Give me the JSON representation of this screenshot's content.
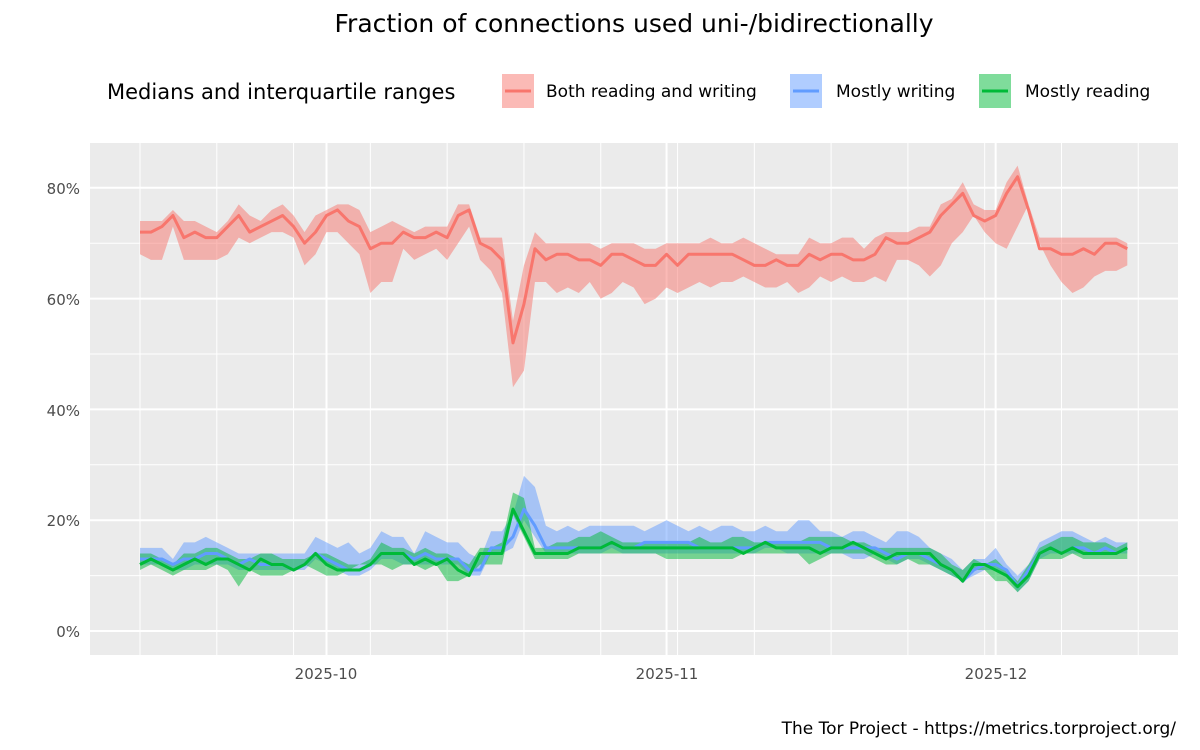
{
  "chart_data": {
    "type": "area",
    "title": "Fraction of connections used uni-/bidirectionally",
    "legend_title": "Medians and interquartile ranges",
    "legend_position": "top",
    "caption": "The Tor Project - https://metrics.torproject.org/",
    "x_start": "2025-09-14",
    "x_end": "2025-12-14",
    "x_step_days": 1,
    "x_ticks": [
      {
        "label": "2025-10",
        "day": 17
      },
      {
        "label": "2025-11",
        "day": 48
      },
      {
        "label": "2025-12",
        "day": 78
      }
    ],
    "y_ticks": [
      {
        "label": "0%",
        "v": 0
      },
      {
        "label": "20%",
        "v": 20
      },
      {
        "label": "40%",
        "v": 40
      },
      {
        "label": "60%",
        "v": 60
      },
      {
        "label": "80%",
        "v": 80
      }
    ],
    "ylim": [
      -4,
      88
    ],
    "xlabel": "",
    "ylabel": "",
    "grid": true,
    "series": [
      {
        "name": "Both reading and writing",
        "color": "#f8766d",
        "median": [
          72,
          72,
          73,
          75,
          71,
          72,
          71,
          71,
          73,
          75,
          72,
          73,
          74,
          75,
          73,
          70,
          72,
          75,
          76,
          74,
          73,
          69,
          70,
          70,
          72,
          71,
          71,
          72,
          71,
          75,
          76,
          70,
          69,
          67,
          52,
          59,
          69,
          67,
          68,
          68,
          67,
          67,
          66,
          68,
          68,
          67,
          66,
          66,
          68,
          66,
          68,
          68,
          68,
          68,
          68,
          67,
          66,
          66,
          67,
          66,
          66,
          68,
          67,
          68,
          68,
          67,
          67,
          68,
          71,
          70,
          70,
          71,
          72,
          75,
          77,
          79,
          75,
          74,
          75,
          79,
          82,
          76,
          69,
          69,
          68,
          68,
          69,
          68,
          70,
          70,
          69
        ],
        "q1": [
          68,
          67,
          67,
          73,
          67,
          67,
          67,
          67,
          68,
          71,
          70,
          71,
          72,
          72,
          71,
          66,
          68,
          72,
          72,
          70,
          68,
          61,
          63,
          63,
          69,
          67,
          68,
          69,
          67,
          70,
          73,
          67,
          65,
          61,
          44,
          47,
          63,
          63,
          61,
          62,
          61,
          63,
          60,
          61,
          63,
          62,
          59,
          60,
          62,
          61,
          62,
          63,
          62,
          63,
          63,
          64,
          63,
          62,
          62,
          63,
          61,
          62,
          64,
          63,
          64,
          63,
          63,
          64,
          63,
          67,
          67,
          66,
          64,
          66,
          70,
          72,
          75,
          72,
          70,
          69,
          73,
          77,
          70,
          66,
          63,
          61,
          62,
          64,
          65,
          65,
          66
        ],
        "q3": [
          74,
          74,
          74,
          76,
          74,
          74,
          73,
          72,
          74,
          77,
          75,
          74,
          76,
          77,
          75,
          72,
          75,
          76,
          77,
          77,
          76,
          72,
          73,
          74,
          73,
          72,
          73,
          73,
          73,
          77,
          77,
          71,
          71,
          71,
          56,
          66,
          72,
          70,
          70,
          70,
          70,
          70,
          69,
          70,
          70,
          70,
          69,
          69,
          70,
          70,
          70,
          70,
          71,
          70,
          70,
          71,
          70,
          69,
          68,
          68,
          68,
          71,
          70,
          70,
          71,
          71,
          69,
          71,
          72,
          72,
          72,
          73,
          73,
          77,
          78,
          81,
          77,
          76,
          76,
          81,
          84,
          77,
          71,
          71,
          71,
          71,
          71,
          71,
          71,
          71,
          70
        ]
      },
      {
        "name": "Mostly writing",
        "color": "#619cff",
        "median": [
          13,
          13,
          13,
          12,
          13,
          13,
          14,
          14,
          13,
          12,
          13,
          12,
          12,
          12,
          11,
          12,
          14,
          13,
          12,
          11,
          11,
          12,
          14,
          14,
          14,
          13,
          14,
          13,
          13,
          13,
          11,
          11,
          15,
          15,
          17,
          22,
          19,
          15,
          15,
          15,
          15,
          15,
          15,
          16,
          15,
          15,
          16,
          16,
          16,
          16,
          16,
          15,
          15,
          15,
          15,
          15,
          15,
          16,
          16,
          16,
          16,
          16,
          16,
          15,
          15,
          15,
          15,
          15,
          14,
          13,
          14,
          14,
          13,
          12,
          11,
          9,
          11,
          12,
          12,
          11,
          8,
          11,
          14,
          15,
          14,
          15,
          15,
          14,
          15,
          14,
          15
        ],
        "q1": [
          12,
          12,
          12,
          11,
          11,
          12,
          12,
          12,
          12,
          11,
          11,
          11,
          11,
          11,
          11,
          11,
          13,
          12,
          11,
          10,
          10,
          11,
          13,
          13,
          12,
          12,
          12,
          12,
          12,
          12,
          10,
          10,
          14,
          14,
          15,
          20,
          17,
          14,
          14,
          14,
          14,
          14,
          14,
          15,
          14,
          14,
          14,
          14,
          14,
          14,
          14,
          14,
          14,
          14,
          14,
          14,
          14,
          15,
          15,
          14,
          14,
          14,
          14,
          14,
          14,
          13,
          13,
          14,
          13,
          12,
          13,
          13,
          12,
          11,
          10,
          9,
          10,
          11,
          11,
          10,
          7,
          9,
          13,
          14,
          14,
          14,
          14,
          14,
          14,
          14,
          14
        ],
        "q3": [
          15,
          15,
          15,
          13,
          16,
          16,
          17,
          16,
          15,
          14,
          14,
          14,
          14,
          14,
          14,
          14,
          17,
          16,
          15,
          16,
          14,
          15,
          18,
          17,
          17,
          14,
          18,
          17,
          16,
          16,
          14,
          13,
          18,
          18,
          21,
          28,
          26,
          19,
          18,
          19,
          18,
          19,
          19,
          19,
          19,
          19,
          18,
          19,
          20,
          19,
          18,
          19,
          18,
          19,
          19,
          18,
          18,
          19,
          18,
          18,
          20,
          20,
          18,
          18,
          17,
          18,
          18,
          17,
          16,
          18,
          18,
          17,
          15,
          14,
          13,
          11,
          13,
          13,
          15,
          12,
          10,
          12,
          16,
          17,
          18,
          18,
          17,
          16,
          17,
          16,
          16
        ]
      },
      {
        "name": "Mostly reading",
        "color": "#00ba38",
        "median": [
          12,
          13,
          12,
          11,
          12,
          13,
          12,
          13,
          13,
          12,
          11,
          13,
          12,
          12,
          11,
          12,
          14,
          12,
          11,
          11,
          11,
          12,
          14,
          14,
          14,
          12,
          13,
          12,
          13,
          11,
          10,
          14,
          14,
          14,
          22,
          18,
          14,
          14,
          14,
          14,
          15,
          15,
          15,
          16,
          15,
          15,
          15,
          15,
          15,
          15,
          15,
          15,
          15,
          15,
          15,
          14,
          15,
          16,
          15,
          15,
          15,
          15,
          14,
          15,
          15,
          16,
          15,
          14,
          13,
          14,
          14,
          14,
          14,
          12,
          11,
          9,
          12,
          12,
          11,
          10,
          8,
          10,
          14,
          15,
          14,
          15,
          14,
          14,
          14,
          14,
          15
        ],
        "q1": [
          11,
          12,
          11,
          10,
          11,
          11,
          11,
          12,
          11,
          8,
          11,
          10,
          10,
          10,
          11,
          12,
          11,
          10,
          10,
          11,
          12,
          12,
          12,
          11,
          12,
          12,
          11,
          12,
          9,
          9,
          10,
          12,
          12,
          12,
          21,
          17,
          13,
          13,
          13,
          13,
          14,
          14,
          14,
          14,
          14,
          14,
          14,
          14,
          13,
          13,
          13,
          13,
          13,
          13,
          13,
          14,
          14,
          14,
          14,
          14,
          14,
          12,
          13,
          14,
          14,
          14,
          14,
          13,
          12,
          12,
          13,
          12,
          12,
          11,
          10,
          9,
          11,
          11,
          9,
          9,
          7,
          9,
          13,
          13,
          13,
          14,
          13,
          13,
          13,
          13,
          13
        ],
        "q3": [
          14,
          14,
          13,
          12,
          14,
          14,
          15,
          15,
          14,
          13,
          13,
          14,
          14,
          13,
          13,
          13,
          14,
          14,
          13,
          12,
          12,
          13,
          16,
          15,
          15,
          14,
          15,
          14,
          14,
          13,
          12,
          15,
          15,
          16,
          25,
          24,
          15,
          15,
          16,
          16,
          17,
          17,
          18,
          17,
          16,
          16,
          16,
          16,
          16,
          16,
          16,
          17,
          16,
          16,
          17,
          17,
          16,
          16,
          16,
          16,
          16,
          17,
          17,
          17,
          17,
          16,
          16,
          15,
          15,
          15,
          15,
          15,
          15,
          14,
          12,
          11,
          13,
          12,
          13,
          11,
          9,
          12,
          15,
          16,
          17,
          17,
          16,
          16,
          16,
          15,
          16
        ]
      }
    ]
  }
}
